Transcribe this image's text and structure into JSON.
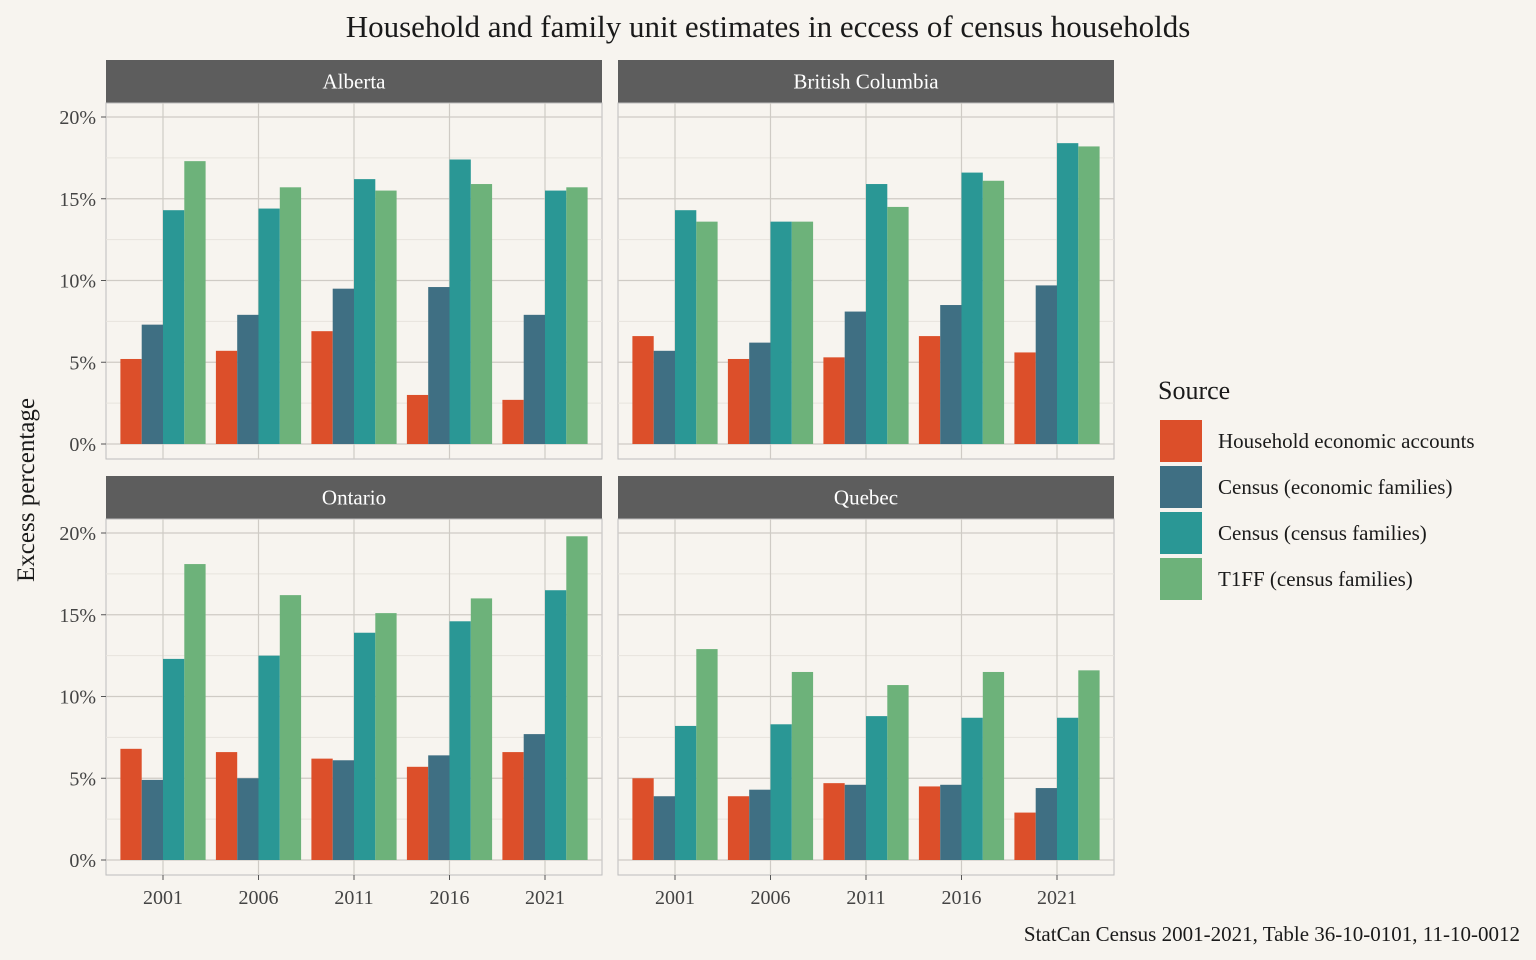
{
  "chart_data": {
    "type": "bar",
    "title": "Household and family unit estimates in eccess of census households",
    "ylabel": "Excess percentage",
    "xlabel": "",
    "caption": "StatCan Census 2001-2021, Table 36-10-0101, 11-10-0012",
    "ylim": [
      0,
      0.2
    ],
    "y_ticks": [
      "0%",
      "5%",
      "10%",
      "15%",
      "20%"
    ],
    "y_tick_values": [
      0,
      0.05,
      0.1,
      0.15,
      0.2
    ],
    "categories": [
      "2001",
      "2006",
      "2011",
      "2016",
      "2021"
    ],
    "grid": true,
    "legend": {
      "title": "Source",
      "position": "right",
      "entries": [
        {
          "name": "Household economic accounts",
          "color": "#dc4f2a"
        },
        {
          "name": "Census (economic families)",
          "color": "#3f6f83"
        },
        {
          "name": "Census (census families)",
          "color": "#2a9795"
        },
        {
          "name": "T1FF (census families)",
          "color": "#6db27a"
        }
      ]
    },
    "panels": [
      {
        "title": "Alberta",
        "series": [
          {
            "name": "Household economic accounts",
            "values": [
              0.052,
              0.057,
              0.069,
              0.03,
              0.027
            ]
          },
          {
            "name": "Census (economic families)",
            "values": [
              0.073,
              0.079,
              0.095,
              0.096,
              0.079
            ]
          },
          {
            "name": "Census (census families)",
            "values": [
              0.143,
              0.144,
              0.162,
              0.174,
              0.155
            ]
          },
          {
            "name": "T1FF (census families)",
            "values": [
              0.173,
              0.157,
              0.155,
              0.159,
              0.157
            ]
          }
        ]
      },
      {
        "title": "British Columbia",
        "series": [
          {
            "name": "Household economic accounts",
            "values": [
              0.066,
              0.052,
              0.053,
              0.066,
              0.056
            ]
          },
          {
            "name": "Census (economic families)",
            "values": [
              0.057,
              0.062,
              0.081,
              0.085,
              0.097
            ]
          },
          {
            "name": "Census (census families)",
            "values": [
              0.143,
              0.136,
              0.159,
              0.166,
              0.184
            ]
          },
          {
            "name": "T1FF (census families)",
            "values": [
              0.136,
              0.136,
              0.145,
              0.161,
              0.182
            ]
          }
        ]
      },
      {
        "title": "Ontario",
        "series": [
          {
            "name": "Household economic accounts",
            "values": [
              0.068,
              0.066,
              0.062,
              0.057,
              0.066
            ]
          },
          {
            "name": "Census (economic families)",
            "values": [
              0.049,
              0.05,
              0.061,
              0.064,
              0.077
            ]
          },
          {
            "name": "Census (census families)",
            "values": [
              0.123,
              0.125,
              0.139,
              0.146,
              0.165
            ]
          },
          {
            "name": "T1FF (census families)",
            "values": [
              0.181,
              0.162,
              0.151,
              0.16,
              0.198
            ]
          }
        ]
      },
      {
        "title": "Quebec",
        "series": [
          {
            "name": "Household economic accounts",
            "values": [
              0.05,
              0.039,
              0.047,
              0.045,
              0.029
            ]
          },
          {
            "name": "Census (economic families)",
            "values": [
              0.039,
              0.043,
              0.046,
              0.046,
              0.044
            ]
          },
          {
            "name": "Census (census families)",
            "values": [
              0.082,
              0.083,
              0.088,
              0.087,
              0.087
            ]
          },
          {
            "name": "T1FF (census families)",
            "values": [
              0.129,
              0.115,
              0.107,
              0.115,
              0.116
            ]
          }
        ]
      }
    ]
  }
}
